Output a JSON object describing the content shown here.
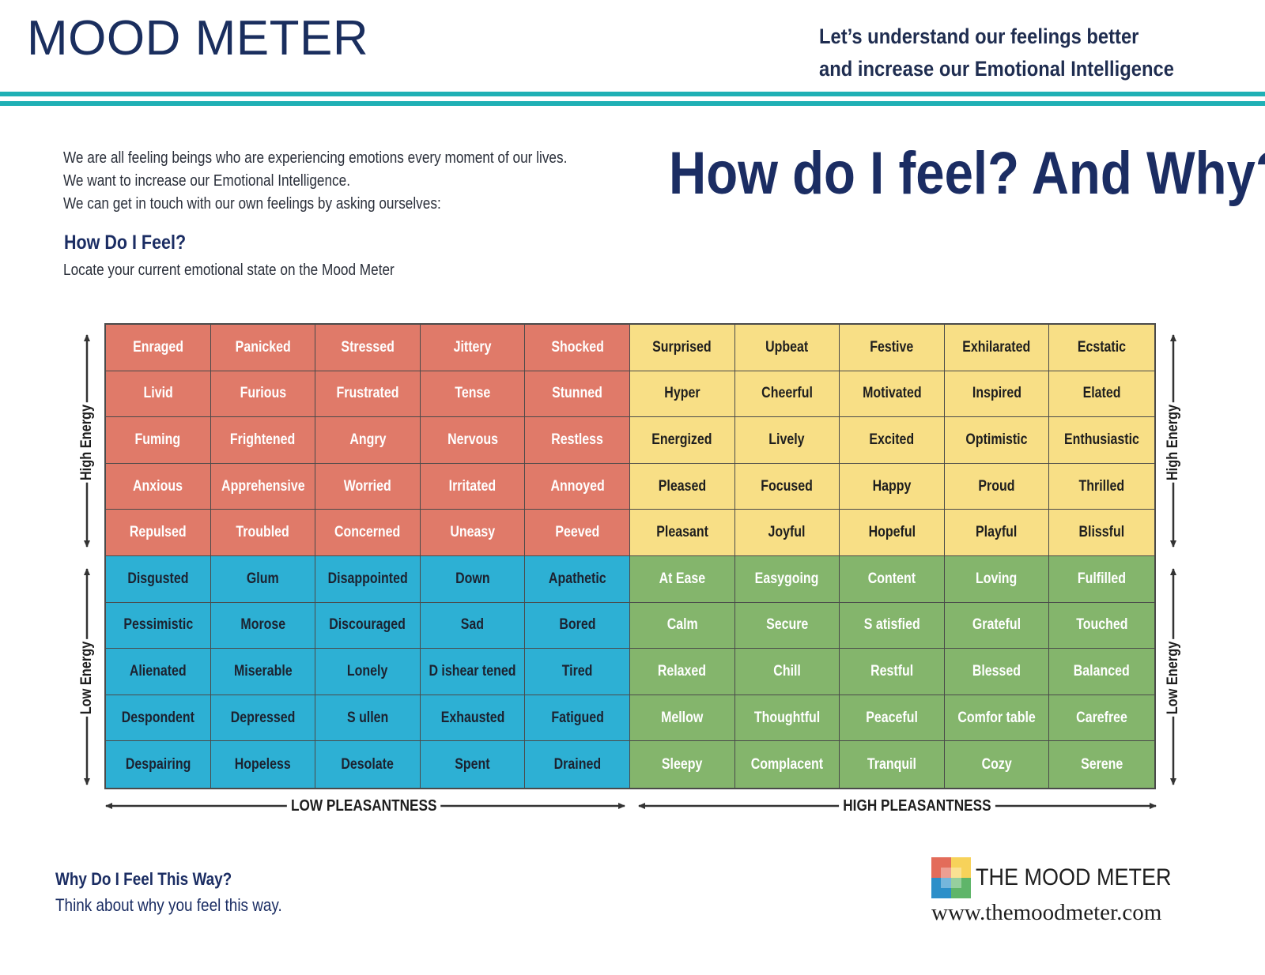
{
  "header": {
    "title": "MOOD METER",
    "tagline_line1": "Let’s understand our feelings better",
    "tagline_line2": "and increase our Emotional Intelligence"
  },
  "intro": {
    "line1": "We are all feeling beings who are experiencing emotions every moment of our lives.",
    "line2": "We want to increase our Emotional Intelligence.",
    "line3": "We can get in touch with our own feelings by asking ourselves:"
  },
  "headline": "How do I feel? And Why?",
  "how_section": {
    "heading": "How Do I Feel?",
    "text": "Locate your current emotional state on the Mood Meter"
  },
  "axes": {
    "high_energy": "High Energy",
    "low_energy": "Low Energy",
    "low_pleasantness": "LOW PLEASANTNESS",
    "high_pleasantness": "HIGH PLEASANTNESS"
  },
  "colors": {
    "red": "#e07a69",
    "yellow": "#f8df86",
    "blue": "#2db0d4",
    "green": "#84b56c",
    "accent_rule": "#1fb0b5",
    "navy": "#1b2d63"
  },
  "grid": [
    [
      "Enraged",
      "Panicked",
      "Stressed",
      "Jittery",
      "Shocked",
      "Surprised",
      "Upbeat",
      "Festive",
      "Exhilarated",
      "Ecstatic"
    ],
    [
      "Livid",
      "Furious",
      "Frustrated",
      "Tense",
      "Stunned",
      "Hyper",
      "Cheerful",
      "Motivated",
      "Inspired",
      "Elated"
    ],
    [
      "Fuming",
      "Frightened",
      "Angry",
      "Nervous",
      "Restless",
      "Energized",
      "Lively",
      "Excited",
      "Optimistic",
      "Enthusiastic"
    ],
    [
      "Anxious",
      "Apprehensive",
      "Worried",
      "Irritated",
      "Annoyed",
      "Pleased",
      "Focused",
      "Happy",
      "Proud",
      "Thrilled"
    ],
    [
      "Repulsed",
      "Troubled",
      "Concerned",
      "Uneasy",
      "Peeved",
      "Pleasant",
      "Joyful",
      "Hopeful",
      "Playful",
      "Blissful"
    ],
    [
      "Disgusted",
      "Glum",
      "Disappointed",
      "Down",
      "Apathetic",
      "At Ease",
      "Easygoing",
      "Content",
      "Loving",
      "Fulfilled"
    ],
    [
      "Pessimistic",
      "Morose",
      "Discouraged",
      "Sad",
      "Bored",
      "Calm",
      "Secure",
      "S atisfied",
      "Grateful",
      "Touched"
    ],
    [
      "Alienated",
      "Miserable",
      "Lonely",
      "D ishear tened",
      "Tired",
      "Relaxed",
      "Chill",
      "Restful",
      "Blessed",
      "Balanced"
    ],
    [
      "Despondent",
      "Depressed",
      "S ullen",
      "Exhausted",
      "Fatigued",
      "Mellow",
      "Thoughtful",
      "Peaceful",
      "Comfor table",
      "Carefree"
    ],
    [
      "Despairing",
      "Hopeless",
      "Desolate",
      "Spent",
      "Drained",
      "Sleepy",
      "Complacent",
      "Tranquil",
      "Cozy",
      "Serene"
    ]
  ],
  "why_section": {
    "heading": "Why Do I Feel This Way?",
    "text": "Think about why you feel this way."
  },
  "logo": {
    "name": "THE MOOD METER",
    "url": "www.themoodmeter.com"
  }
}
